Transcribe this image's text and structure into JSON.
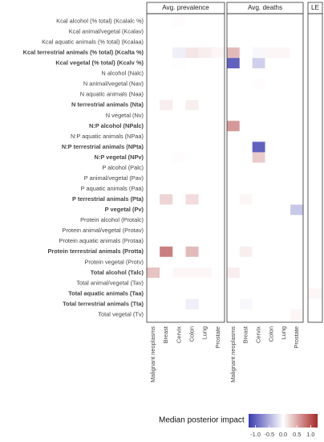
{
  "chart_data": {
    "type": "heatmap",
    "rows": [
      "Kcal alcohol (% total) (Kcalalc %)",
      "Kcal animal/vegetal (Kcalav)",
      "Kcal aquatic animals (% total) (Kcalaa)",
      "Kcal terrestrial animals (% total) (Kcalta %)",
      "Kcal vegetal (% total) (Kcalv %)",
      "N alcohol (Nalc)",
      "N animal/vegetal (Nav)",
      "N aquatic animals (Naa)",
      "N terrestrial animals (Nta)",
      "N vegetal (Nv)",
      "N:P alcohol (NPalc)",
      "N:P aquatic animals (NPaa)",
      "N:P terrestrial animals (NPta)",
      "N:P vegetal (NPv)",
      "P alcohol (Palc)",
      "P animal/vegetal (Pav)",
      "P aquatic animals (Paa)",
      "P terrestrial animals (Pta)",
      "P vegetal (Pv)",
      "Protein alcohol (Protalc)",
      "Protein animal/vegetal (Protav)",
      "Protein aquatic animals (Protaa)",
      "Protein terrestrial animals (Protta)",
      "Protein vegetal (Protv)",
      "Total alcohol (Talc)",
      "Total animal/vegetal (Tav)",
      "Total aquatic animals (Taa)",
      "Total terrestrial animals (Tta)",
      "Total vegetal (Tv)"
    ],
    "row_bold": [
      false,
      false,
      false,
      true,
      true,
      false,
      false,
      false,
      true,
      false,
      true,
      false,
      true,
      true,
      false,
      false,
      false,
      true,
      true,
      false,
      false,
      false,
      true,
      false,
      true,
      false,
      true,
      true,
      false
    ],
    "panels": [
      {
        "title": "Avg. prevalence",
        "columns": [
          "Malignant neoplasms",
          "Breast",
          "Cervix",
          "Colon",
          "Lung",
          "Prostate"
        ],
        "values": [
          [
            0,
            0,
            0.02,
            0,
            0,
            0
          ],
          [
            0,
            0,
            0,
            0,
            0,
            0
          ],
          [
            0,
            0,
            0,
            0,
            0,
            0
          ],
          [
            0,
            0,
            -0.1,
            0.15,
            0.1,
            0.05
          ],
          [
            0,
            0,
            0.02,
            0,
            0,
            0
          ],
          [
            0,
            0,
            0,
            0,
            0,
            0
          ],
          [
            0,
            0,
            0,
            0,
            0,
            0
          ],
          [
            0,
            0,
            0,
            0,
            0,
            0
          ],
          [
            0,
            0.1,
            0,
            0.1,
            0,
            0
          ],
          [
            0,
            0,
            0,
            0,
            0,
            0
          ],
          [
            0,
            0,
            0,
            0,
            0,
            0
          ],
          [
            0,
            0,
            0,
            0,
            0,
            0
          ],
          [
            0,
            0,
            0,
            0,
            0,
            0
          ],
          [
            0,
            0,
            0.02,
            0,
            0,
            0
          ],
          [
            0,
            0,
            0,
            0,
            0,
            0
          ],
          [
            0,
            0,
            0,
            0,
            0,
            0
          ],
          [
            0,
            0,
            0,
            0,
            0,
            0
          ],
          [
            0,
            0.25,
            0,
            0.2,
            0,
            0
          ],
          [
            0,
            0,
            0,
            0,
            0,
            0
          ],
          [
            0,
            0,
            0,
            0,
            0,
            0
          ],
          [
            0,
            0,
            0,
            0,
            0,
            0
          ],
          [
            0,
            0,
            0,
            0,
            0,
            0
          ],
          [
            0,
            0.75,
            0,
            0.4,
            0,
            0
          ],
          [
            0,
            0,
            0,
            0,
            0,
            0
          ],
          [
            0.35,
            0,
            0.05,
            0.05,
            0.05,
            0
          ],
          [
            0,
            0,
            0,
            0,
            0,
            0
          ],
          [
            0,
            0,
            0,
            0,
            0,
            0
          ],
          [
            0,
            0,
            0,
            -0.1,
            0,
            0
          ],
          [
            0,
            0,
            0,
            0,
            0,
            0
          ]
        ]
      },
      {
        "title": "Avg. deaths",
        "columns": [
          "Malignant neoplasms",
          "Breast",
          "Cervix",
          "Colon",
          "Lung",
          "Prostate"
        ],
        "values": [
          [
            0,
            0,
            0,
            0,
            0,
            0
          ],
          [
            0,
            0,
            0,
            0,
            0,
            0
          ],
          [
            0,
            0,
            0,
            0,
            0,
            0
          ],
          [
            0.4,
            0,
            -0.05,
            0.05,
            0.05,
            0
          ],
          [
            -1.0,
            0,
            -0.3,
            0,
            0,
            0
          ],
          [
            0,
            0,
            0,
            0,
            0,
            0
          ],
          [
            0,
            0,
            0.02,
            0,
            0,
            0
          ],
          [
            0,
            0,
            0,
            0,
            0,
            0
          ],
          [
            0,
            0,
            0,
            0,
            0,
            0
          ],
          [
            0,
            0,
            0,
            0,
            0,
            0
          ],
          [
            0.6,
            0,
            0,
            0,
            0,
            0
          ],
          [
            0,
            0,
            0,
            0,
            0,
            0
          ],
          [
            0,
            0,
            -1.0,
            0,
            0,
            0
          ],
          [
            0,
            0,
            0.3,
            0,
            0,
            0
          ],
          [
            0,
            0,
            0,
            0,
            0,
            0
          ],
          [
            0,
            0,
            0,
            0,
            0,
            0
          ],
          [
            0,
            0,
            0,
            0,
            0,
            0
          ],
          [
            0,
            0.05,
            0,
            0,
            0,
            0
          ],
          [
            0,
            0,
            0,
            0,
            0,
            -0.35
          ],
          [
            0,
            0,
            0,
            0,
            0,
            0
          ],
          [
            0,
            0,
            0,
            0,
            0,
            0
          ],
          [
            0,
            0,
            0,
            0,
            0,
            0
          ],
          [
            0,
            0.1,
            0,
            0,
            0,
            0
          ],
          [
            0,
            0,
            0,
            0,
            0,
            0
          ],
          [
            0.1,
            0,
            0,
            0,
            0,
            0
          ],
          [
            0,
            0,
            0,
            0,
            0,
            0
          ],
          [
            0,
            0,
            0,
            0,
            0,
            0
          ],
          [
            0,
            -0.05,
            0,
            0,
            0,
            0
          ],
          [
            0,
            0,
            0,
            0,
            0,
            0.05
          ]
        ]
      },
      {
        "title": "LE",
        "columns": [
          null
        ],
        "values": [
          [
            0
          ],
          [
            0
          ],
          [
            0
          ],
          [
            0
          ],
          [
            0
          ],
          [
            0
          ],
          [
            0
          ],
          [
            0
          ],
          [
            0
          ],
          [
            0
          ],
          [
            0
          ],
          [
            0
          ],
          [
            0
          ],
          [
            0
          ],
          [
            0
          ],
          [
            0
          ],
          [
            0
          ],
          [
            0
          ],
          [
            0
          ],
          [
            0
          ],
          [
            0
          ],
          [
            0
          ],
          [
            0
          ],
          [
            0
          ],
          [
            0
          ],
          [
            0
          ],
          [
            0.05
          ],
          [
            0
          ],
          [
            0
          ]
        ]
      }
    ],
    "colorbar_title": "Median posterior impact",
    "clim": [
      -1.25,
      1.25
    ],
    "colormap": [
      "#3a3ab0",
      "#ffffff",
      "#a82828"
    ],
    "cticks": [
      {
        "value": -1.0,
        "label": "-1.0"
      },
      {
        "value": -0.5,
        "label": "-0.5"
      },
      {
        "value": 0.0,
        "label": "0.0"
      },
      {
        "value": 0.5,
        "label": "0.5"
      },
      {
        "value": 1.0,
        "label": "1.0"
      }
    ]
  }
}
